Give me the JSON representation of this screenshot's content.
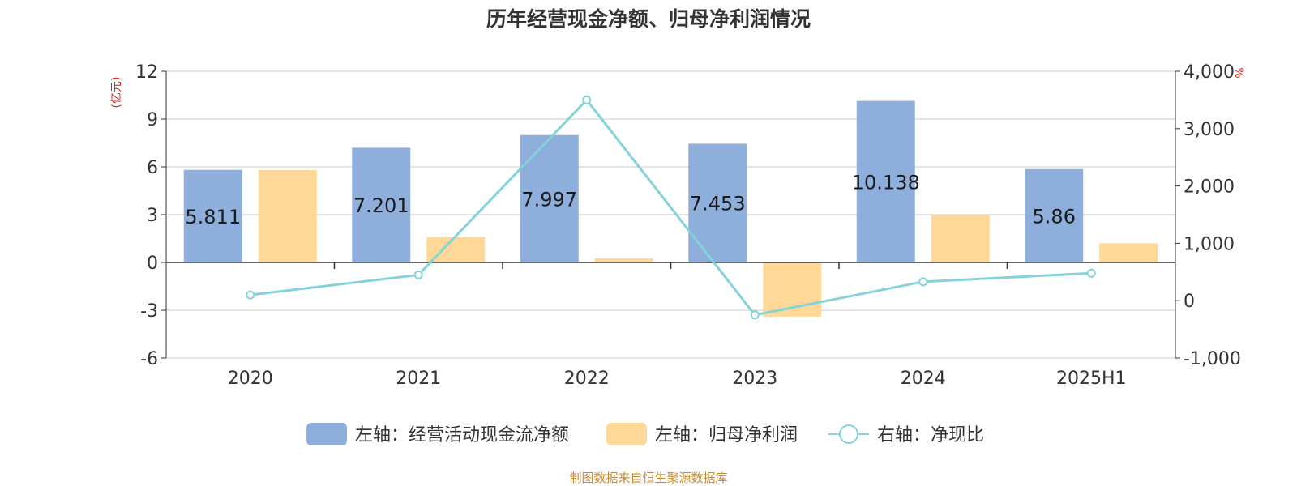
{
  "chart_data": {
    "type": "bar",
    "title": "历年经营现金净额、归母净利润情况",
    "categories": [
      "2020",
      "2021",
      "2022",
      "2023",
      "2024",
      "2025H1"
    ],
    "left_axis": {
      "unit": "(亿元)",
      "ylim": [
        -6,
        12
      ],
      "ticks": [
        "12",
        "9",
        "6",
        "3",
        "0",
        "-3",
        "-6"
      ]
    },
    "right_axis": {
      "unit": "%",
      "ylim": [
        -1000,
        4000
      ],
      "ticks": [
        "4,000",
        "3,000",
        "2,000",
        "1,000",
        "0",
        "-1,000"
      ]
    },
    "series": [
      {
        "name": "左轴：经营活动现金流净额",
        "type": "bar",
        "axis": "left",
        "color": "#8eaedb",
        "values": [
          5.811,
          7.201,
          7.997,
          7.453,
          10.138,
          5.86
        ],
        "labels": [
          "5.811",
          "7.201",
          "7.997",
          "7.453",
          "10.138",
          "5.86"
        ]
      },
      {
        "name": "左轴：归母净利润",
        "type": "bar",
        "axis": "left",
        "color": "#ffd898",
        "values": [
          5.8,
          1.6,
          0.25,
          -3.4,
          3.0,
          1.2
        ]
      },
      {
        "name": "右轴：净现比",
        "type": "line",
        "axis": "right",
        "color": "#84d3d8",
        "values": [
          100,
          450,
          3500,
          -250,
          330,
          480
        ]
      }
    ],
    "legend_position": "bottom",
    "grid": true,
    "source": "制图数据来自恒生聚源数据库"
  }
}
